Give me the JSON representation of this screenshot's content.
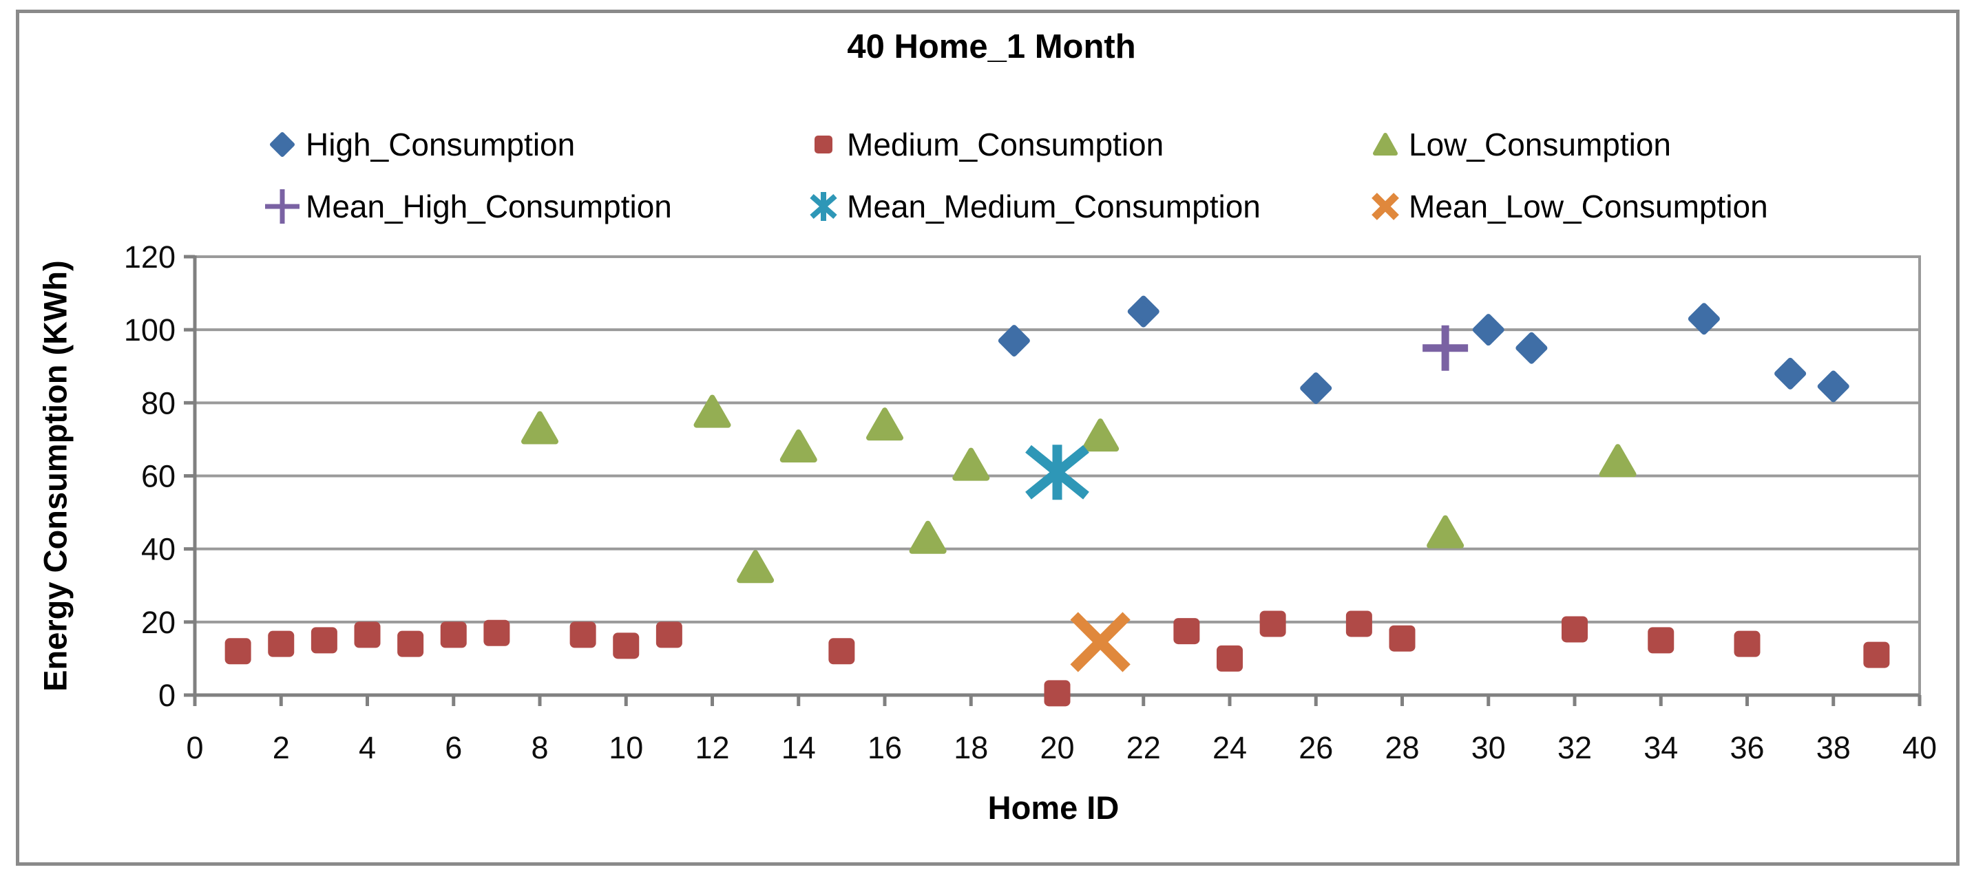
{
  "title": "40 Home_1 Month",
  "colors": {
    "high_blue": "#3F6EA6",
    "medium_red": "#B04A47",
    "low_green": "#94AE53",
    "mean_high_purple": "#7A62A3",
    "mean_medium_teal": "#2E97B7",
    "mean_low_orange": "#E0883C",
    "gridline_gray": "#9a9a9a",
    "axis_gray": "#808080",
    "figure_border_gray": "#8a8a8a",
    "text_black": "#0d0d0d"
  },
  "chart_data": {
    "type": "scatter",
    "title": "40 Home_1 Month",
    "xlabel": "Home ID",
    "ylabel": "Energy Consumption (KWh)",
    "xlim": [
      0,
      40
    ],
    "xstep": 2,
    "ylim": [
      0,
      120
    ],
    "ystep": 20,
    "grid": "horizontal",
    "legend_position": "top-two-rows",
    "series": [
      {
        "name": "High_Consumption",
        "marker": "diamond",
        "color": "#3F6EA6",
        "points": [
          [
            19,
            97
          ],
          [
            22,
            105
          ],
          [
            26,
            84
          ],
          [
            30,
            100
          ],
          [
            31,
            95
          ],
          [
            35,
            103
          ],
          [
            37,
            88
          ],
          [
            38,
            84.5
          ]
        ]
      },
      {
        "name": "Medium_Consumption",
        "marker": "square",
        "color": "#B04A47",
        "points": [
          [
            1,
            12
          ],
          [
            2,
            14
          ],
          [
            3,
            15
          ],
          [
            4,
            16.5
          ],
          [
            5,
            14
          ],
          [
            6,
            16.5
          ],
          [
            7,
            17
          ],
          [
            9,
            16.5
          ],
          [
            10,
            13.5
          ],
          [
            11,
            16.5
          ],
          [
            15,
            12
          ],
          [
            20,
            0.5
          ],
          [
            23,
            17.5
          ],
          [
            24,
            10
          ],
          [
            25,
            19.5
          ],
          [
            27,
            19.5
          ],
          [
            28,
            15.5
          ],
          [
            32,
            18
          ],
          [
            34,
            15
          ],
          [
            36,
            14
          ],
          [
            39,
            11
          ]
        ]
      },
      {
        "name": "Low_Consumption",
        "marker": "triangle",
        "color": "#94AE53",
        "points": [
          [
            8,
            73
          ],
          [
            12,
            77.5
          ],
          [
            13,
            35
          ],
          [
            14,
            68
          ],
          [
            16,
            74
          ],
          [
            17,
            43
          ],
          [
            18,
            63
          ],
          [
            21,
            71
          ],
          [
            29,
            44.5
          ],
          [
            33,
            64
          ]
        ]
      },
      {
        "name": "Mean_High_Consumption",
        "marker": "plus",
        "color": "#7A62A3",
        "points": [
          [
            29,
            95
          ]
        ]
      },
      {
        "name": "Mean_Medium_Consumption",
        "marker": "star6",
        "color": "#2E97B7",
        "points": [
          [
            20,
            61
          ]
        ]
      },
      {
        "name": "Mean_Low_Consumption",
        "marker": "xmark",
        "color": "#E0883C",
        "points": [
          [
            21,
            14.5
          ]
        ]
      }
    ],
    "y_tick_labels": [
      "0",
      "20",
      "40",
      "60",
      "80",
      "100",
      "120"
    ],
    "x_tick_labels": [
      "0",
      "2",
      "4",
      "6",
      "8",
      "10",
      "12",
      "14",
      "16",
      "18",
      "20",
      "22",
      "24",
      "26",
      "28",
      "30",
      "32",
      "34",
      "36",
      "38",
      "40"
    ]
  }
}
